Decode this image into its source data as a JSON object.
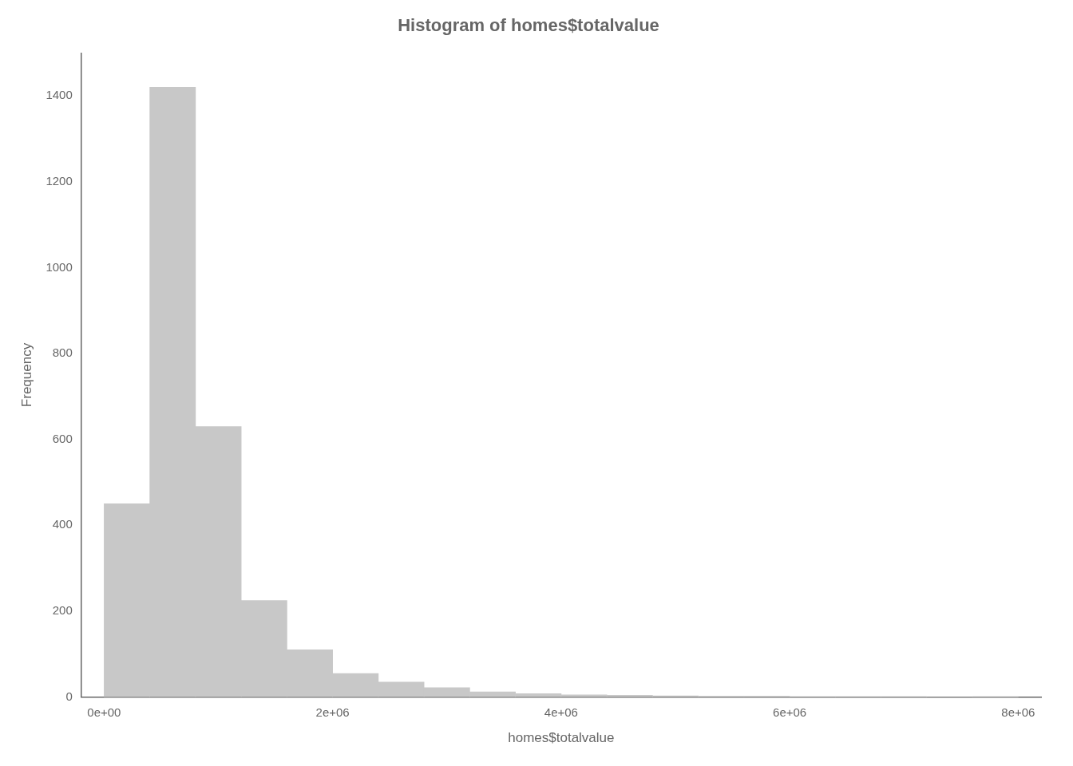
{
  "chart_data": {
    "type": "histogram",
    "title": "Histogram of homes$totalvalue",
    "xlabel": "homes$totalvalue",
    "ylabel": "Frequency",
    "bins": [
      0,
      400000,
      800000,
      1200000,
      1600000,
      2000000,
      2400000,
      2800000,
      3200000,
      3600000,
      4000000,
      4400000,
      4800000,
      5200000,
      5600000,
      6000000,
      6400000,
      6800000,
      7200000,
      7600000,
      8000000
    ],
    "values": [
      450,
      1420,
      630,
      225,
      110,
      55,
      35,
      22,
      12,
      8,
      5,
      4,
      3,
      2,
      2,
      1,
      1,
      1,
      0,
      1
    ],
    "color": "#c8c8c8",
    "xlim": [
      -200000,
      8200000
    ],
    "ylim": [
      0,
      1500
    ],
    "xticks": [
      {
        "value": 0,
        "label": "0e+00"
      },
      {
        "value": 2000000,
        "label": "2e+06"
      },
      {
        "value": 4000000,
        "label": "4e+06"
      },
      {
        "value": 6000000,
        "label": "6e+06"
      },
      {
        "value": 8000000,
        "label": "8e+06"
      }
    ],
    "yticks": [
      0,
      200,
      400,
      600,
      800,
      1000,
      1200,
      1400
    ],
    "grid": false
  }
}
